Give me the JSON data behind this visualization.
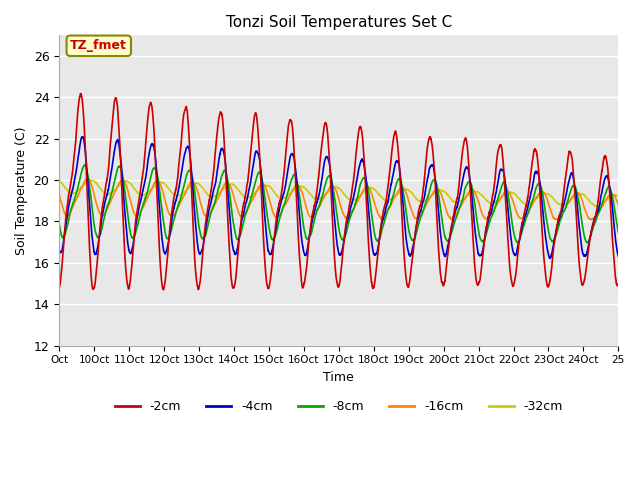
{
  "title": "Tonzi Soil Temperatures Set C",
  "xlabel": "Time",
  "ylabel": "Soil Temperature (C)",
  "ylim": [
    12,
    27
  ],
  "yticks": [
    12,
    14,
    16,
    18,
    20,
    22,
    24,
    26
  ],
  "annotation_text": "TZ_fmet",
  "bg_color": "#e8e8e8",
  "line_colors": [
    "#cc0000",
    "#0000cc",
    "#00aa00",
    "#ff8800",
    "#cccc00"
  ],
  "line_labels": [
    "-2cm",
    "-4cm",
    "-8cm",
    "-16cm",
    "-32cm"
  ],
  "xtick_labels": [
    "Oct",
    "10Oct",
    "11Oct",
    "12Oct",
    "13Oct",
    "14Oct",
    "15Oct",
    "16Oct",
    "17Oct",
    "18Oct",
    "19Oct",
    "20Oct",
    "21Oct",
    "22Oct",
    "23Oct",
    "24Oct",
    "25"
  ]
}
